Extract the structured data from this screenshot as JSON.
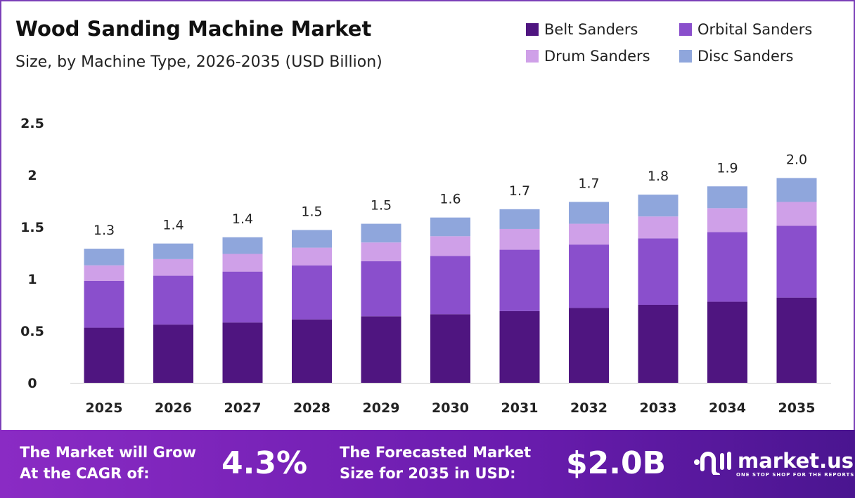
{
  "chart_data": {
    "type": "bar",
    "stacked": true,
    "title": "Wood Sanding Machine Market",
    "subtitle": "Size, by Machine Type, 2026-2035 (USD Billion)",
    "categories": [
      "2025",
      "2026",
      "2027",
      "2028",
      "2029",
      "2030",
      "2031",
      "2032",
      "2033",
      "2034",
      "2035"
    ],
    "series": [
      {
        "name": "Belt Sanders",
        "color": "#4f1580",
        "values": [
          0.53,
          0.56,
          0.58,
          0.61,
          0.64,
          0.66,
          0.69,
          0.72,
          0.75,
          0.78,
          0.82
        ]
      },
      {
        "name": "Orbital Sanders",
        "color": "#8a4fcc",
        "values": [
          0.45,
          0.47,
          0.49,
          0.52,
          0.53,
          0.56,
          0.59,
          0.61,
          0.64,
          0.67,
          0.69
        ]
      },
      {
        "name": "Drum Sanders",
        "color": "#cfa0e8",
        "values": [
          0.15,
          0.16,
          0.17,
          0.17,
          0.18,
          0.19,
          0.2,
          0.2,
          0.21,
          0.23,
          0.23
        ]
      },
      {
        "name": "Disc Sanders",
        "color": "#8fa6dc",
        "values": [
          0.16,
          0.15,
          0.16,
          0.17,
          0.18,
          0.18,
          0.19,
          0.21,
          0.21,
          0.21,
          0.23
        ]
      }
    ],
    "totals": [
      "1.3",
      "1.4",
      "1.4",
      "1.5",
      "1.5",
      "1.6",
      "1.7",
      "1.7",
      "1.8",
      "1.9",
      "2.0"
    ],
    "yticks": [
      "0",
      "0.5",
      "1",
      "1.5",
      "2",
      "2.5"
    ],
    "ylim": [
      0,
      2.5
    ],
    "grid": false,
    "legend": "top-right"
  },
  "footer": {
    "cagr_label_1": "The Market will Grow",
    "cagr_label_2": "At the CAGR of:",
    "cagr_value": "4.3%",
    "size_label_1": "The Forecasted Market",
    "size_label_2": "Size for 2035 in USD:",
    "size_value": "$2.0B",
    "logo_name": "market.us",
    "logo_tagline": "ONE STOP SHOP FOR THE REPORTS"
  }
}
